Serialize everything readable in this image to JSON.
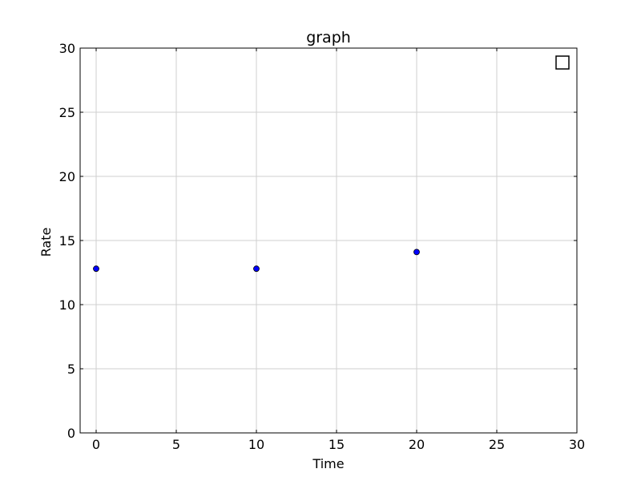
{
  "chart_data": {
    "type": "scatter",
    "title": "graph",
    "xlabel": "Time",
    "ylabel": "Rate",
    "xlim": [
      -1,
      30
    ],
    "ylim": [
      0,
      30
    ],
    "xticks": [
      "0",
      "5",
      "10",
      "15",
      "20",
      "25",
      "30"
    ],
    "yticks": [
      "0",
      "5",
      "10",
      "15",
      "20",
      "25",
      "30"
    ],
    "grid": true,
    "legend": "top-right (empty)",
    "series": [
      {
        "x": [
          0,
          10,
          20
        ],
        "y": [
          12.8,
          12.8,
          14.1
        ],
        "color": "#0000ff"
      }
    ]
  }
}
